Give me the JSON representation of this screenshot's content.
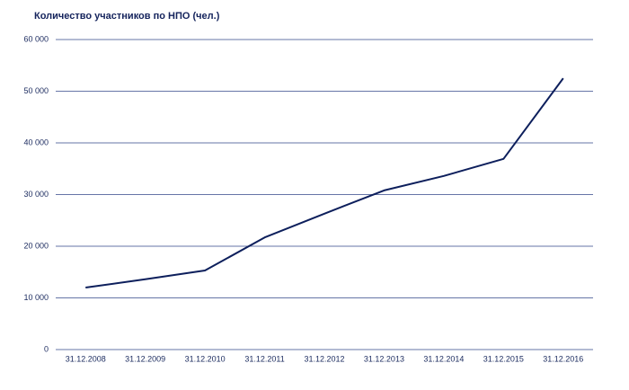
{
  "chart_data": {
    "type": "line",
    "title": "Количество участников по НПО (чел.)",
    "categories": [
      "31.12.2008",
      "31.12.2009",
      "31.12.2010",
      "31.12.2011",
      "31.12.2012",
      "31.12.2013",
      "31.12.2014",
      "31.12.2015",
      "31.12.2016"
    ],
    "values": [
      12000,
      13600,
      15300,
      21700,
      26300,
      30800,
      33600,
      36900,
      52500
    ],
    "color": "#0d1f5c",
    "grid_color": "#33478a",
    "ylim": [
      0,
      60000
    ],
    "yticks": [
      0,
      {
        "value": 10000,
        "label": "10 000"
      },
      {
        "value": 20000,
        "label": "20 000"
      },
      {
        "value": 30000,
        "label": "30 000"
      },
      {
        "value": 40000,
        "label": "40 000"
      },
      {
        "value": 50000,
        "label": "50 000"
      },
      {
        "value": 60000,
        "label": "60 000"
      }
    ],
    "grid": true
  }
}
